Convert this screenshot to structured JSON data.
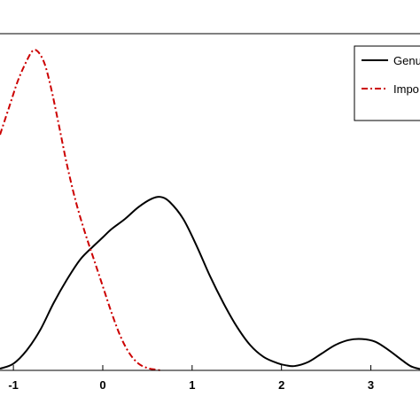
{
  "chart_data": {
    "type": "line",
    "xlim": [
      -1.15,
      3.55
    ],
    "ylim": [
      0,
      1
    ],
    "x_ticks": [
      "-1",
      "0",
      "1",
      "2",
      "3"
    ],
    "x_tick_values": [
      -1,
      0,
      1,
      2,
      3
    ],
    "grid": false,
    "legend_position": "top-right",
    "series": [
      {
        "name": "Genu",
        "color": "#000000",
        "line_style": "solid",
        "points": [
          [
            -1.15,
            0.005
          ],
          [
            -1.0,
            0.02
          ],
          [
            -0.85,
            0.06
          ],
          [
            -0.7,
            0.12
          ],
          [
            -0.55,
            0.2
          ],
          [
            -0.4,
            0.27
          ],
          [
            -0.25,
            0.33
          ],
          [
            -0.1,
            0.37
          ],
          [
            0.0,
            0.395
          ],
          [
            0.1,
            0.42
          ],
          [
            0.25,
            0.45
          ],
          [
            0.4,
            0.485
          ],
          [
            0.55,
            0.51
          ],
          [
            0.65,
            0.515
          ],
          [
            0.75,
            0.5
          ],
          [
            0.9,
            0.45
          ],
          [
            1.05,
            0.37
          ],
          [
            1.2,
            0.28
          ],
          [
            1.35,
            0.2
          ],
          [
            1.5,
            0.13
          ],
          [
            1.65,
            0.075
          ],
          [
            1.8,
            0.04
          ],
          [
            1.95,
            0.022
          ],
          [
            2.05,
            0.015
          ],
          [
            2.15,
            0.013
          ],
          [
            2.3,
            0.025
          ],
          [
            2.45,
            0.05
          ],
          [
            2.6,
            0.075
          ],
          [
            2.75,
            0.09
          ],
          [
            2.9,
            0.093
          ],
          [
            3.05,
            0.085
          ],
          [
            3.2,
            0.06
          ],
          [
            3.35,
            0.03
          ],
          [
            3.45,
            0.012
          ],
          [
            3.55,
            0.004
          ]
        ]
      },
      {
        "name": "Impo",
        "color": "#cc0000",
        "line_style": "dashdot",
        "points": [
          [
            -1.15,
            0.7
          ],
          [
            -1.05,
            0.78
          ],
          [
            -0.95,
            0.86
          ],
          [
            -0.85,
            0.92
          ],
          [
            -0.78,
            0.95
          ],
          [
            -0.72,
            0.945
          ],
          [
            -0.65,
            0.91
          ],
          [
            -0.58,
            0.84
          ],
          [
            -0.5,
            0.74
          ],
          [
            -0.4,
            0.61
          ],
          [
            -0.3,
            0.5
          ],
          [
            -0.2,
            0.41
          ],
          [
            -0.1,
            0.33
          ],
          [
            0.0,
            0.25
          ],
          [
            0.1,
            0.17
          ],
          [
            0.2,
            0.1
          ],
          [
            0.3,
            0.05
          ],
          [
            0.4,
            0.02
          ],
          [
            0.5,
            0.007
          ],
          [
            0.6,
            0.002
          ],
          [
            0.65,
            0.0
          ]
        ]
      }
    ]
  }
}
